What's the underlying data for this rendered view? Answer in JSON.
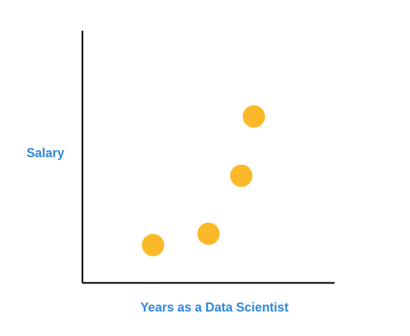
{
  "chart_data": {
    "type": "scatter",
    "title": "",
    "xlabel": "Years as a Data Scientist",
    "ylabel": "Salary",
    "xlim": [
      0,
      10
    ],
    "ylim": [
      0,
      10
    ],
    "grid": false,
    "legend": "none",
    "series": [
      {
        "points": [
          {
            "x": 2.8,
            "y": 1.5
          },
          {
            "x": 5.0,
            "y": 1.95
          },
          {
            "x": 6.3,
            "y": 4.25
          },
          {
            "x": 6.8,
            "y": 6.6
          }
        ]
      }
    ]
  },
  "colors": {
    "axis": "#111111",
    "label": "#2f86df",
    "point": "#fbb828"
  }
}
